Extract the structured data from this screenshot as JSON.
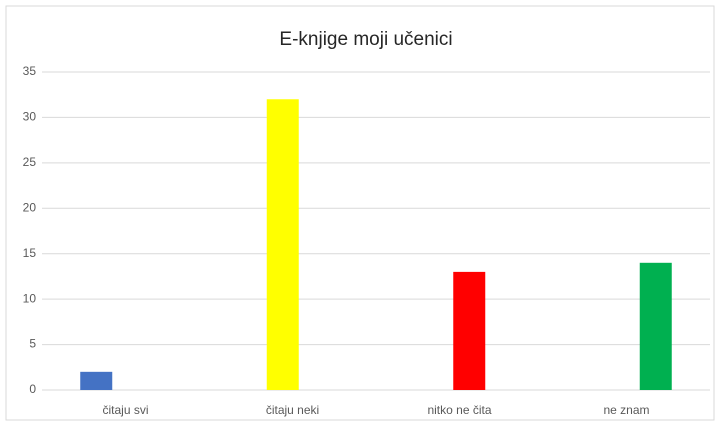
{
  "chart_data": {
    "type": "bar",
    "title": "E-knjige moji učenici",
    "categories": [
      "čitaju svi",
      "čitaju neki",
      "nitko ne čita",
      "ne znam"
    ],
    "values": [
      2,
      32,
      13,
      14
    ],
    "colors": [
      "#4472c4",
      "#ffff00",
      "#ff0000",
      "#00b050"
    ],
    "ylim": [
      0,
      35
    ],
    "yticks": [
      0,
      5,
      10,
      15,
      20,
      25,
      30,
      35
    ],
    "grid": true
  }
}
